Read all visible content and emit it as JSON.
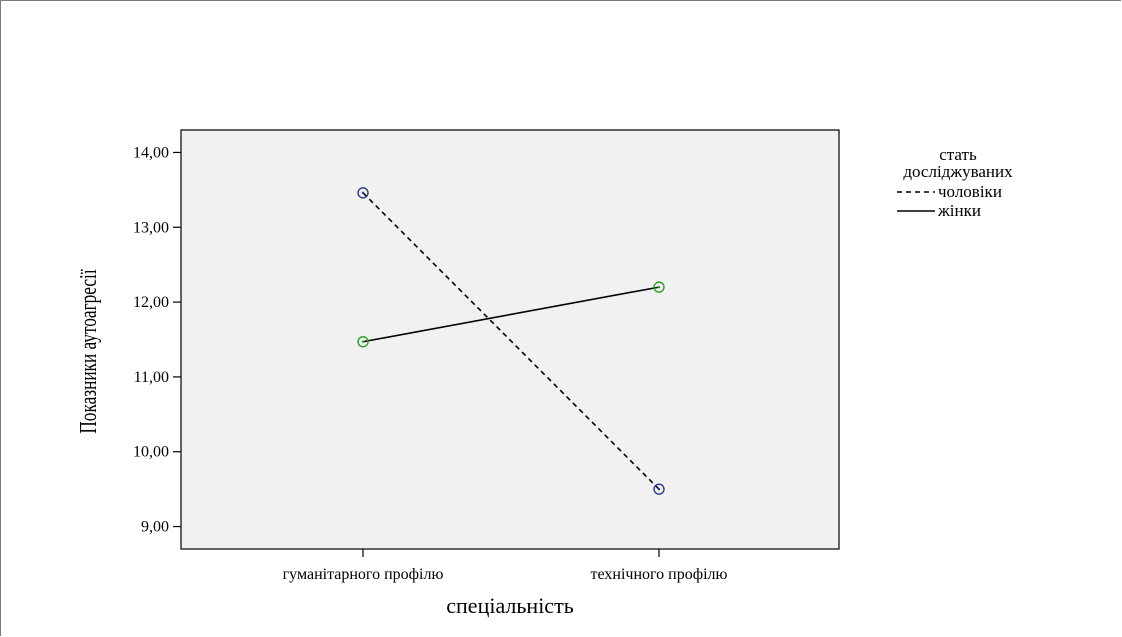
{
  "chart_data": {
    "type": "line",
    "xlabel": "спеціальність",
    "ylabel": "Показники аутоагресії",
    "categories": [
      "гуманітарного профілю",
      "технічного профілю"
    ],
    "ylim": [
      8.7,
      14.3
    ],
    "yticks": [
      9.0,
      10.0,
      11.0,
      12.0,
      13.0,
      14.0
    ],
    "ytick_labels": [
      "9,00",
      "10,00",
      "11,00",
      "12,00",
      "13,00",
      "14,00"
    ],
    "legend": {
      "title_line1": "стать",
      "title_line2": "досліджуваних",
      "placement": "right"
    },
    "grid": false,
    "background": "#f1f1f1",
    "series": [
      {
        "name": "чоловіки",
        "values": [
          13.46,
          9.5
        ],
        "line_style": "dashed",
        "marker_color": "#2d3a8c",
        "line_color": "#000000"
      },
      {
        "name": "жінки",
        "values": [
          11.47,
          12.2
        ],
        "line_style": "solid",
        "marker_color": "#2ca02c",
        "line_color": "#000000"
      }
    ]
  }
}
